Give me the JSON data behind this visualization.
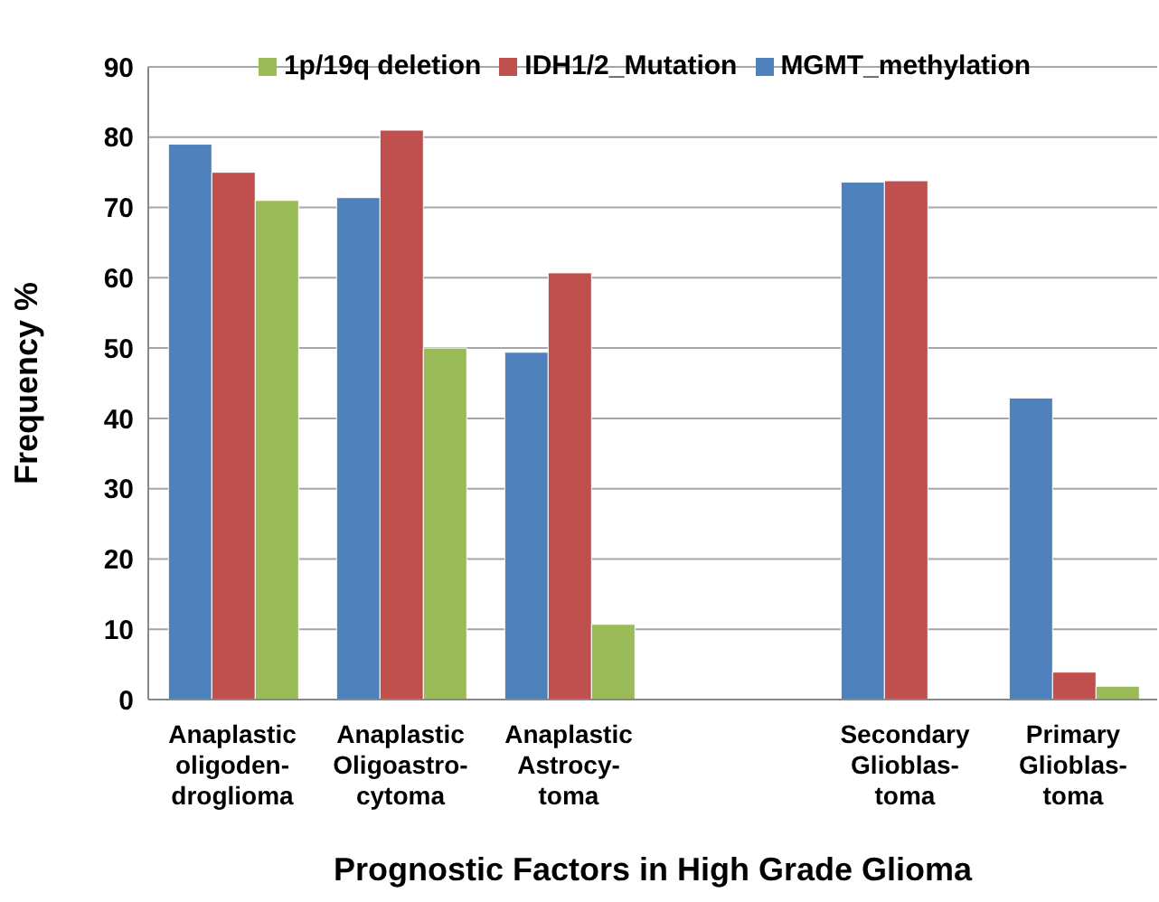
{
  "chart_data": {
    "type": "bar",
    "xlabel": "Prognostic Factors in High Grade Glioma",
    "ylabel": "Frequency  %",
    "categories": [
      "Anaplastic\noligoden-\ndroglioma",
      "Anaplastic\nOligoastro-\ncytoma",
      "Anaplastic\nAstrocy-\ntoma",
      null,
      "Secondary\nGlioblas-\ntoma",
      "Primary\nGlioblas-\ntoma"
    ],
    "series": [
      {
        "name": "MGMT_methylation",
        "color": "#4f81bd",
        "values": [
          79,
          71.4,
          49.4,
          null,
          73.6,
          42.9
        ]
      },
      {
        "name": "IDH1/2_Mutation",
        "color": "#c0504d",
        "values": [
          75,
          81,
          60.7,
          null,
          73.8,
          3.9
        ]
      },
      {
        "name": "1p/19q deletion",
        "color": "#9bbb59",
        "values": [
          71,
          50,
          10.7,
          null,
          null,
          1.9
        ]
      }
    ],
    "ylim": [
      0,
      90
    ],
    "yticks": [
      0,
      10,
      20,
      30,
      40,
      50,
      60,
      70,
      80,
      90
    ],
    "grid": "y",
    "legend": "top"
  }
}
